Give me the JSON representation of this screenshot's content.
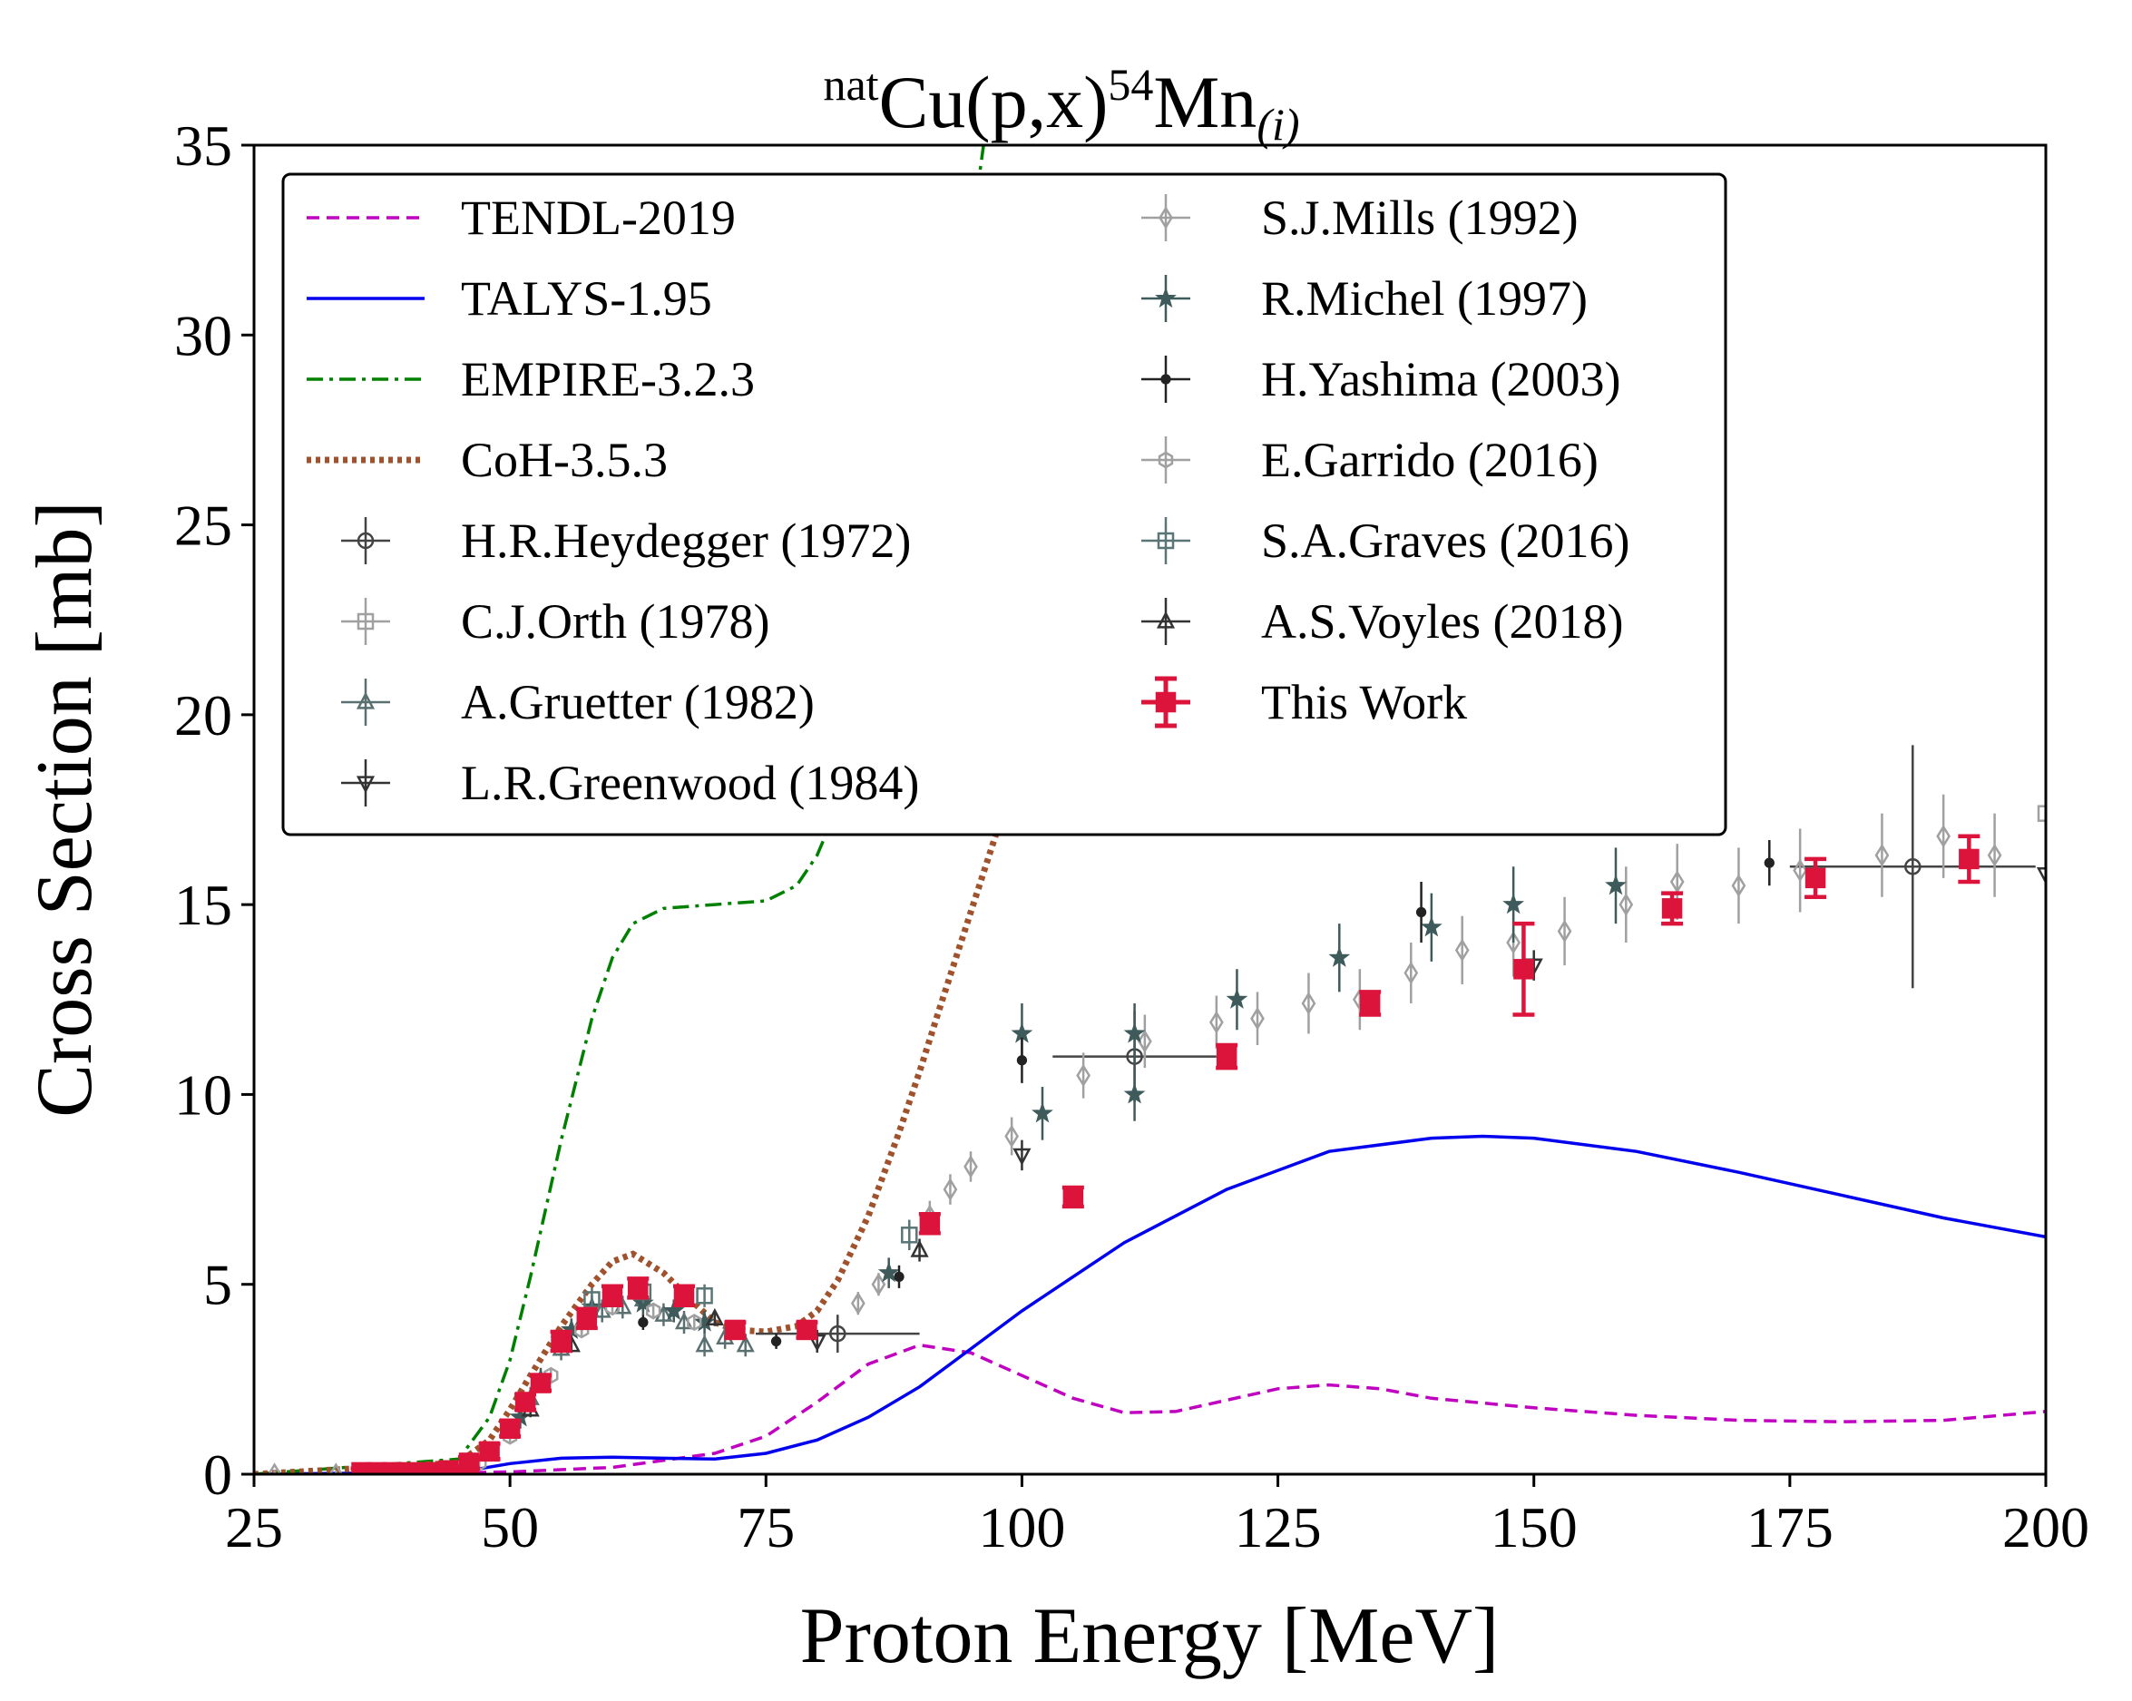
{
  "chart_data": {
    "type": "line",
    "title": {
      "pre_sup": "nat",
      "main_a": "Cu(p,x)",
      "mid_sup": "54",
      "main_b": "Mn",
      "sub": "(i)"
    },
    "xlabel": "Proton Energy [MeV]",
    "ylabel": "Cross Section [mb]",
    "xlim": [
      25,
      200
    ],
    "ylim": [
      0,
      35
    ],
    "x_ticks": [
      25,
      50,
      75,
      100,
      125,
      150,
      175,
      200
    ],
    "y_ticks": [
      0,
      5,
      10,
      15,
      20,
      25,
      30,
      35
    ],
    "grid": false,
    "legend_position": "upper-left",
    "curves": [
      {
        "name": "TENDL-2019",
        "color": "#c000c0",
        "style": "dashed",
        "x": [
          25,
          40,
          50,
          60,
          70,
          75,
          80,
          85,
          90,
          95,
          100,
          105,
          110,
          115,
          120,
          125,
          130,
          135,
          140,
          150,
          160,
          170,
          180,
          190,
          200
        ],
        "y": [
          0,
          0.02,
          0.06,
          0.18,
          0.55,
          1.0,
          1.9,
          2.9,
          3.4,
          3.2,
          2.6,
          2.0,
          1.62,
          1.65,
          1.95,
          2.25,
          2.35,
          2.25,
          2.0,
          1.75,
          1.55,
          1.42,
          1.38,
          1.42,
          1.65
        ]
      },
      {
        "name": "TALYS-1.95",
        "color": "#0000ee",
        "style": "solid",
        "x": [
          25,
          45,
          50,
          55,
          60,
          65,
          70,
          75,
          80,
          85,
          90,
          95,
          100,
          110,
          120,
          130,
          140,
          145,
          150,
          160,
          170,
          180,
          190,
          200
        ],
        "y": [
          0,
          0.05,
          0.28,
          0.42,
          0.45,
          0.42,
          0.4,
          0.55,
          0.9,
          1.5,
          2.3,
          3.3,
          4.3,
          6.1,
          7.5,
          8.5,
          8.85,
          8.9,
          8.85,
          8.5,
          7.95,
          7.35,
          6.75,
          6.25
        ]
      },
      {
        "name": "EMPIRE-3.2.3",
        "color": "#008000",
        "style": "dashdot",
        "x": [
          25,
          45,
          48,
          50,
          52,
          55,
          58,
          60,
          62,
          65,
          70,
          75,
          78,
          80,
          85,
          90,
          95,
          96.5
        ],
        "y": [
          0,
          0.4,
          1.5,
          3.0,
          5.2,
          8.8,
          12.0,
          13.6,
          14.5,
          14.9,
          15.0,
          15.1,
          15.5,
          16.3,
          19.5,
          25.0,
          32.5,
          35.5
        ]
      },
      {
        "name": "CoH-3.5.3",
        "color": "#a0522d",
        "style": "dotted",
        "x": [
          25,
          45,
          48,
          50,
          52,
          55,
          58,
          60,
          62,
          65,
          68,
          70,
          72,
          75,
          78,
          80,
          82,
          85,
          88,
          90,
          92,
          95,
          98,
          100
        ],
        "y": [
          0,
          0.3,
          0.9,
          1.7,
          2.6,
          3.9,
          5.0,
          5.6,
          5.8,
          5.3,
          4.5,
          4.0,
          3.8,
          3.75,
          3.9,
          4.3,
          5.1,
          6.8,
          9.0,
          10.6,
          12.3,
          14.8,
          17.3,
          19.0
        ]
      }
    ],
    "datasets": [
      {
        "name": "H.R.Heydegger (1972)",
        "marker": "circle",
        "color": "#444444",
        "filled": false,
        "points": [
          [
            82,
            3.7,
            8,
            0.5
          ],
          [
            111,
            11.0,
            8,
            1.2
          ],
          [
            187,
            16.0,
            12,
            3.2
          ]
        ]
      },
      {
        "name": "C.J.Orth (1978)",
        "marker": "square",
        "color": "#a0a0a0",
        "filled": false,
        "points": [
          [
            200,
            17.4,
            0,
            0.3
          ]
        ]
      },
      {
        "name": "A.Gruetter (1982)",
        "marker": "triangle-up",
        "color": "#5a7070",
        "filled": false,
        "points": [
          [
            52,
            2.0,
            0,
            0.3
          ],
          [
            55,
            3.3,
            0,
            0.3
          ],
          [
            57,
            4.0,
            0,
            0.3
          ],
          [
            59,
            4.3,
            0,
            0.3
          ],
          [
            61,
            4.4,
            0,
            0.3
          ],
          [
            63,
            4.6,
            0,
            0.3
          ],
          [
            65,
            4.2,
            0,
            0.3
          ],
          [
            67,
            4.0,
            0,
            0.3
          ],
          [
            69,
            3.4,
            0,
            0.3
          ],
          [
            71,
            3.6,
            0,
            0.3
          ],
          [
            73,
            3.4,
            0,
            0.3
          ]
        ]
      },
      {
        "name": "L.R.Greenwood (1984)",
        "marker": "triangle-down",
        "color": "#333333",
        "filled": false,
        "points": [
          [
            80,
            3.5,
            0,
            0.3
          ],
          [
            100,
            8.4,
            0,
            0.4
          ],
          [
            150,
            13.4,
            0,
            0.4
          ],
          [
            200,
            15.8,
            0,
            0.4
          ]
        ]
      },
      {
        "name": "S.J.Mills (1992)",
        "marker": "diamond",
        "color": "#a0a0a0",
        "filled": false,
        "points": [
          [
            27,
            0.0,
            0,
            0.1
          ],
          [
            33,
            0.0,
            0,
            0.1
          ],
          [
            84,
            4.5,
            0,
            0.3
          ],
          [
            86,
            5.0,
            0,
            0.3
          ],
          [
            91,
            6.8,
            0,
            0.4
          ],
          [
            93,
            7.5,
            0,
            0.4
          ],
          [
            95,
            8.1,
            0,
            0.4
          ],
          [
            99,
            8.9,
            0,
            0.5
          ],
          [
            106,
            10.5,
            0,
            0.6
          ],
          [
            112,
            11.4,
            0,
            0.7
          ],
          [
            119,
            11.9,
            0,
            0.7
          ],
          [
            123,
            12.0,
            0,
            0.7
          ],
          [
            128,
            12.4,
            0,
            0.8
          ],
          [
            133,
            12.5,
            0,
            0.8
          ],
          [
            138,
            13.2,
            0,
            0.8
          ],
          [
            143,
            13.8,
            0,
            0.9
          ],
          [
            148,
            14.0,
            0,
            0.9
          ],
          [
            153,
            14.3,
            0,
            0.9
          ],
          [
            159,
            15.0,
            0,
            1.0
          ],
          [
            164,
            15.6,
            0,
            1.0
          ],
          [
            170,
            15.5,
            0,
            1.0
          ],
          [
            176,
            15.9,
            0,
            1.1
          ],
          [
            184,
            16.3,
            0,
            1.1
          ],
          [
            190,
            16.8,
            0,
            1.1
          ],
          [
            195,
            16.3,
            0,
            1.1
          ]
        ]
      },
      {
        "name": "R.Michel (1997)",
        "marker": "star",
        "color": "#3f5a5a",
        "filled": true,
        "points": [
          [
            51,
            1.5,
            0,
            0.3
          ],
          [
            53,
            2.5,
            0,
            0.3
          ],
          [
            56,
            3.8,
            0,
            0.3
          ],
          [
            58,
            4.4,
            0,
            0.3
          ],
          [
            60,
            4.7,
            0,
            0.3
          ],
          [
            63,
            4.5,
            0,
            0.3
          ],
          [
            66,
            4.3,
            0,
            0.3
          ],
          [
            69,
            4.0,
            0,
            0.3
          ],
          [
            87,
            5.3,
            0,
            0.4
          ],
          [
            100,
            11.6,
            0,
            0.8
          ],
          [
            102,
            9.5,
            0,
            0.7
          ],
          [
            111,
            11.6,
            0,
            0.8
          ],
          [
            111,
            10.0,
            0,
            0.7
          ],
          [
            121,
            12.5,
            0,
            0.8
          ],
          [
            131,
            13.6,
            0,
            0.9
          ],
          [
            140,
            14.4,
            0,
            0.9
          ],
          [
            148,
            15.0,
            0,
            1.0
          ],
          [
            158,
            15.5,
            0,
            1.0
          ]
        ]
      },
      {
        "name": "H.Yashima (2003)",
        "marker": "dot",
        "color": "#222222",
        "filled": true,
        "points": [
          [
            63,
            4.0,
            0,
            0.2
          ],
          [
            76,
            3.5,
            0,
            0.2
          ],
          [
            88,
            5.2,
            0,
            0.3
          ],
          [
            100,
            10.9,
            0,
            0.6
          ],
          [
            139,
            14.8,
            0,
            0.8
          ],
          [
            173,
            16.1,
            0,
            0.6
          ]
        ]
      },
      {
        "name": "E.Garrido (2016)",
        "marker": "hexagon",
        "color": "#a0a0a0",
        "filled": false,
        "points": [
          [
            36,
            0.05,
            0,
            0.1
          ],
          [
            40,
            0.05,
            0,
            0.1
          ],
          [
            44,
            0.1,
            0,
            0.1
          ],
          [
            47,
            0.3,
            0,
            0.15
          ],
          [
            50,
            1.0,
            0,
            0.2
          ],
          [
            54,
            2.6,
            0,
            0.2
          ],
          [
            57,
            3.8,
            0,
            0.2
          ],
          [
            60,
            4.4,
            0,
            0.2
          ],
          [
            64,
            4.3,
            0,
            0.2
          ],
          [
            68,
            4.0,
            0,
            0.2
          ]
        ]
      },
      {
        "name": "S.A.Graves (2016)",
        "marker": "square",
        "color": "#5a7575",
        "filled": false,
        "points": [
          [
            58,
            4.6,
            0,
            0.3
          ],
          [
            63,
            4.8,
            0,
            0.3
          ],
          [
            69,
            4.7,
            0,
            0.3
          ],
          [
            89,
            6.3,
            0,
            0.4
          ]
        ]
      },
      {
        "name": "A.S.Voyles (2018)",
        "marker": "triangle-up",
        "color": "#333333",
        "filled": false,
        "points": [
          [
            52,
            1.7,
            0,
            0.2
          ],
          [
            56,
            3.4,
            0,
            0.2
          ],
          [
            70,
            4.1,
            0,
            0.2
          ],
          [
            90,
            5.9,
            0,
            0.3
          ]
        ]
      },
      {
        "name": "This Work",
        "marker": "square",
        "color": "#dc143c",
        "filled": true,
        "points": [
          [
            35.5,
            0.05,
            0,
            0.1
          ],
          [
            37,
            0.05,
            0,
            0.1
          ],
          [
            38.5,
            0.05,
            0,
            0.1
          ],
          [
            40,
            0.05,
            0,
            0.1
          ],
          [
            42,
            0.05,
            0,
            0.1
          ],
          [
            44,
            0.1,
            0,
            0.1
          ],
          [
            46,
            0.3,
            0,
            0.15
          ],
          [
            48,
            0.6,
            0,
            0.2
          ],
          [
            50,
            1.2,
            0,
            0.2
          ],
          [
            51.5,
            1.9,
            0,
            0.2
          ],
          [
            53,
            2.4,
            0,
            0.2
          ],
          [
            55,
            3.5,
            0,
            0.25
          ],
          [
            57.5,
            4.1,
            0,
            0.25
          ],
          [
            60,
            4.7,
            0,
            0.25
          ],
          [
            62.5,
            4.9,
            0,
            0.25
          ],
          [
            67,
            4.7,
            0,
            0.25
          ],
          [
            72,
            3.8,
            0,
            0.2
          ],
          [
            79,
            3.8,
            0,
            0.2
          ],
          [
            91,
            6.6,
            0,
            0.25
          ],
          [
            105,
            7.3,
            0,
            0.25
          ],
          [
            120,
            11.0,
            0,
            0.3
          ],
          [
            134,
            12.4,
            0,
            0.3
          ],
          [
            149,
            13.3,
            0,
            1.2
          ],
          [
            163.5,
            14.9,
            0,
            0.4
          ],
          [
            177.5,
            15.7,
            0,
            0.5
          ],
          [
            192.5,
            16.2,
            0,
            0.6
          ]
        ]
      }
    ]
  }
}
